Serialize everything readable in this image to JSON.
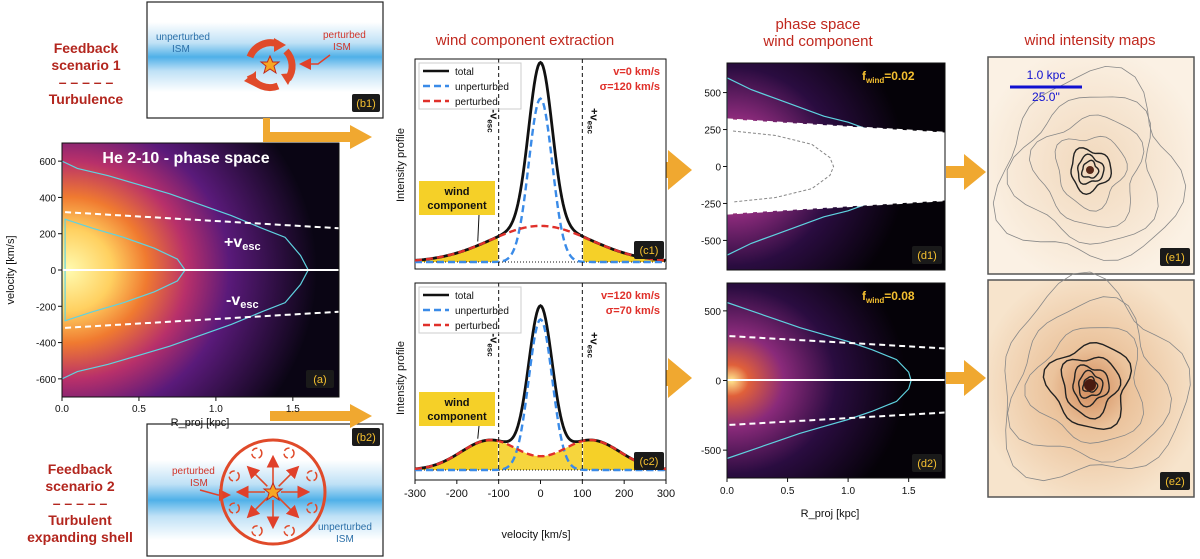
{
  "headers": {
    "extraction": "wind component extraction",
    "phase_line1": "phase space",
    "phase_line2": "wind component",
    "maps": "wind intensity maps"
  },
  "scenario1": {
    "line1": "Feedback",
    "line2": "scenario 1",
    "dash": "– – – – –",
    "line3": "Turbulence"
  },
  "scenario2": {
    "line1": "Feedback",
    "line2": "scenario 2",
    "dash": "– – – – –",
    "line3": "Turbulent",
    "line4": "expanding shell"
  },
  "b1": {
    "tag": "(b1)",
    "unperturbed": "unperturbed",
    "ism": "ISM",
    "perturbed": "perturbed",
    "ism2": "ISM"
  },
  "b2": {
    "tag": "(b2)",
    "unperturbed": "unperturbed",
    "ism": "ISM",
    "perturbed": "perturbed",
    "ism2": "ISM"
  },
  "panel_a": {
    "title": "He 2-10 - phase space",
    "tag": "(a)",
    "xlabel": "R_proj [kpc]",
    "ylabel": "velocity [km/s]",
    "vesc_plus": "+v",
    "vesc_minus": "-v",
    "esc": "esc"
  },
  "c1": {
    "tag": "(c1)",
    "v": "v=0 km/s",
    "sigma": "σ=120 km/s"
  },
  "c2": {
    "tag": "(c2)",
    "v": "v=120 km/s",
    "sigma": "σ=70 km/s"
  },
  "c_common": {
    "ylabel": "Intensity profile",
    "xlabel": "velocity [km/s]",
    "wind_line1": "wind",
    "wind_line2": "component",
    "vesc_minus": "-v",
    "vesc_plus": "+v",
    "esc": "esc",
    "legend": {
      "total": "total",
      "unperturbed": "unperturbed",
      "perturbed": "perturbed"
    }
  },
  "d1": {
    "tag": "(d1)",
    "f_label": "f",
    "f_sub": "wind",
    "f_value": "=0.02"
  },
  "d2": {
    "tag": "(d2)",
    "f_label": "f",
    "f_sub": "wind",
    "f_value": "=0.08"
  },
  "d_common": {
    "xlabel": "R_proj [kpc]"
  },
  "e1": {
    "tag": "(e1)",
    "scale_kpc": "1.0 kpc",
    "scale_arcsec": "25.0''"
  },
  "e2": {
    "tag": "(e2)"
  },
  "colors": {
    "red": "#c0281e",
    "orange": "#f0a030",
    "yellow": "#f5d028",
    "blue": "#3a8be8",
    "cyan": "#5fd3e0"
  },
  "chart_data": [
    {
      "type": "heatmap",
      "title": "He 2-10 - phase space",
      "xlabel": "R_proj [kpc]",
      "ylabel": "velocity [km/s]",
      "xlim": [
        0,
        1.8
      ],
      "ylim": [
        -700,
        700
      ],
      "xticks": [
        "0.0",
        "0.5",
        "1.0",
        "1.5"
      ],
      "yticks": [
        "600",
        "400",
        "200",
        "0",
        "-200",
        "-400",
        "-600"
      ],
      "escape_velocity_curve": {
        "R": [
          0,
          1.8
        ],
        "v": [
          320,
          230
        ]
      }
    },
    {
      "type": "line",
      "id": "c1",
      "xlim": [
        -300,
        300
      ],
      "x": [
        -300,
        -200,
        -100,
        0,
        100,
        200,
        300
      ],
      "series": [
        {
          "name": "total",
          "v0": 0,
          "sigma": 120
        },
        {
          "name": "unperturbed"
        },
        {
          "name": "perturbed",
          "v0": 0,
          "sigma": 120
        }
      ],
      "vesc": 100
    },
    {
      "type": "line",
      "id": "c2",
      "xlim": [
        -300,
        300
      ],
      "xticks": [
        "-300",
        "-200",
        "-100",
        "0",
        "100",
        "200",
        "300"
      ],
      "series": [
        {
          "name": "total",
          "v0": 120,
          "sigma": 70
        },
        {
          "name": "unperturbed"
        },
        {
          "name": "perturbed",
          "v0": 120,
          "sigma": 70
        }
      ],
      "vesc": 100
    },
    {
      "type": "heatmap",
      "id": "d1",
      "xlim": [
        0,
        1.8
      ],
      "ylim": [
        -700,
        700
      ],
      "yticks": [
        "500",
        "250",
        "0",
        "-250",
        "-500"
      ],
      "f_wind": 0.02
    },
    {
      "type": "heatmap",
      "id": "d2",
      "xlim": [
        0,
        1.8
      ],
      "ylim": [
        -700,
        700
      ],
      "xticks": [
        "0.0",
        "0.5",
        "1.0",
        "1.5"
      ],
      "yticks": [
        "500",
        "0",
        "-500"
      ],
      "f_wind": 0.08
    }
  ]
}
